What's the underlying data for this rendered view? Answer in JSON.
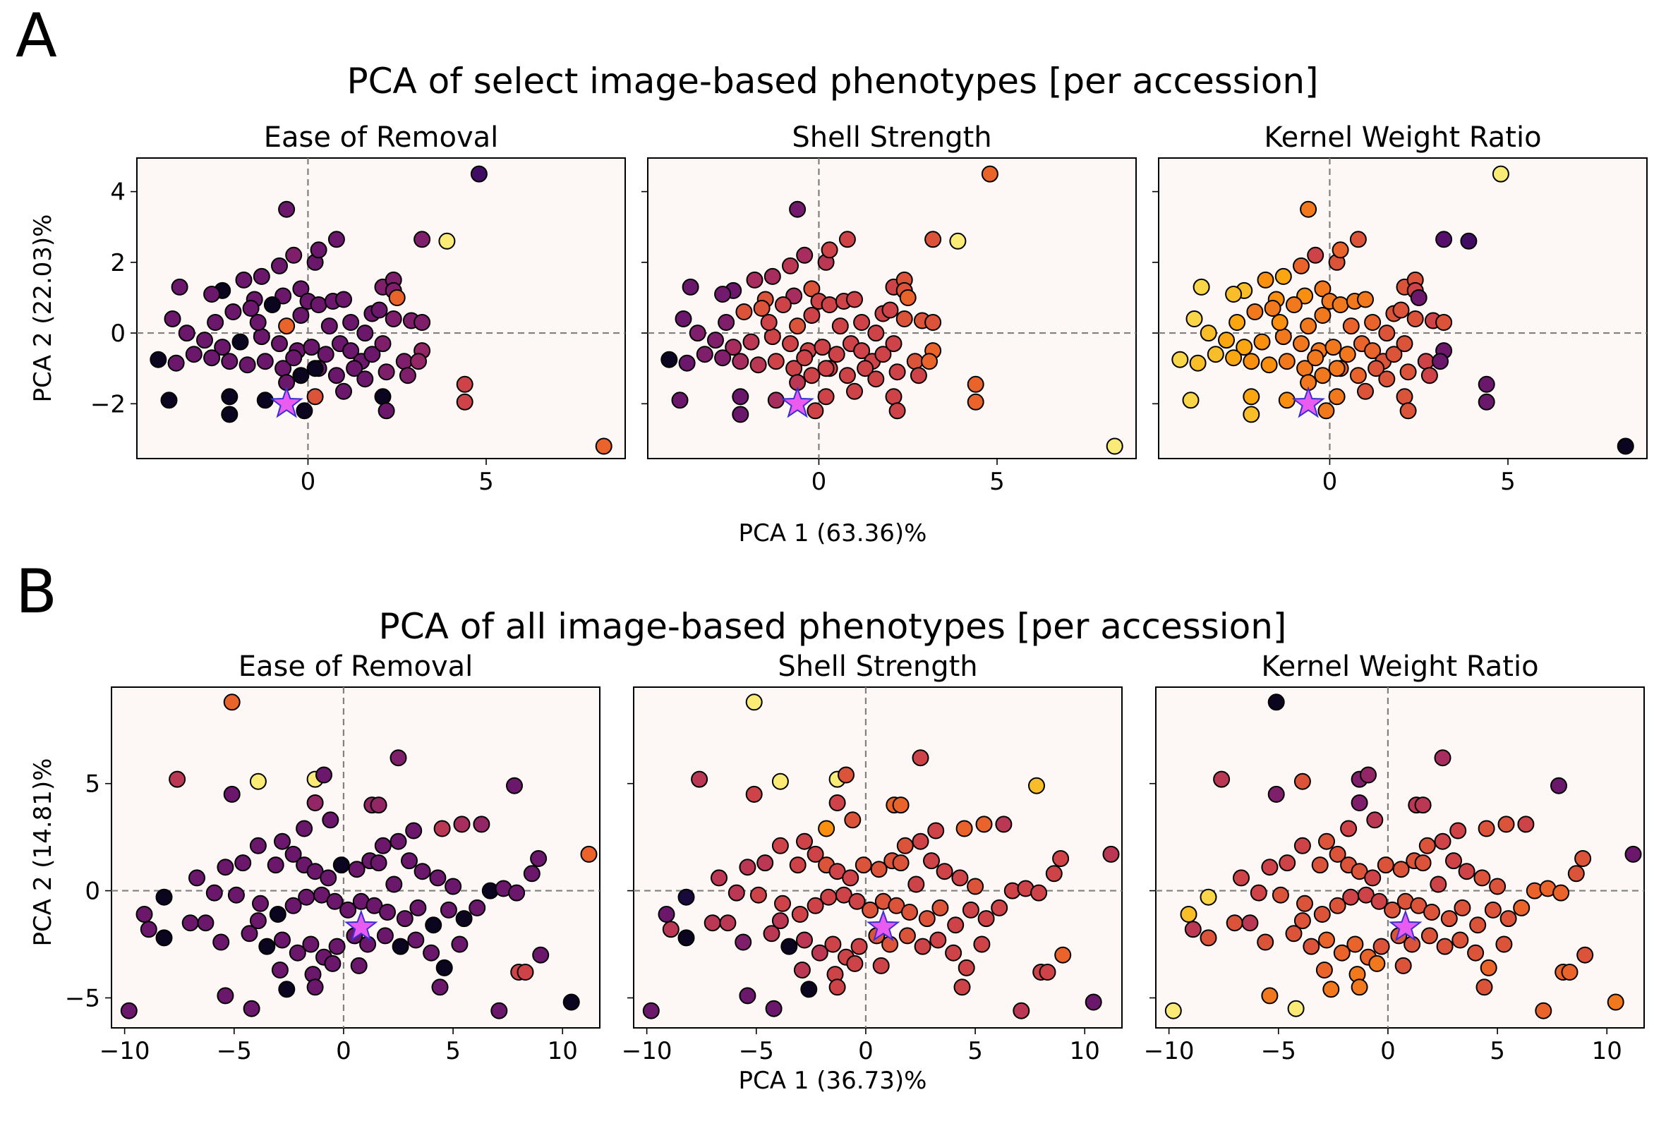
{
  "colormap": [
    "#000004",
    "#1b0c41",
    "#4a0c6b",
    "#781c6d",
    "#a52c60",
    "#cf4446",
    "#ed6925",
    "#fb9b06",
    "#f7d13d",
    "#fcffa4"
  ],
  "star_color": "#ea5cf0",
  "panel_labels": [
    "A",
    "B"
  ],
  "chart_data": [
    {
      "type": "scatter",
      "title": "PCA of select image-based phenotypes [per accession]",
      "xlabel": "PCA 1 (63.36)%",
      "ylabel": "PCA 2 (22.03)%",
      "xlim": [
        -4.8,
        8.9
      ],
      "ylim": [
        -3.55,
        4.95
      ],
      "xticks": [
        0,
        5
      ],
      "yticks": [
        -2,
        0,
        2,
        4
      ],
      "grid": false,
      "subplots": [
        "Ease of Removal",
        "Shell Strength",
        "Kernel Weight Ratio"
      ],
      "star": [
        -0.6,
        -2.0
      ],
      "points": [
        [
          4.8,
          4.5,
          0.2,
          0.65,
          0.95
        ],
        [
          -0.6,
          3.5,
          0.3,
          0.32,
          0.7
        ],
        [
          0.8,
          2.65,
          0.3,
          0.55,
          0.6
        ],
        [
          3.9,
          2.6,
          0.95,
          0.95,
          0.2
        ],
        [
          3.2,
          2.65,
          0.35,
          0.6,
          0.25
        ],
        [
          -0.4,
          2.2,
          0.35,
          0.45,
          0.55
        ],
        [
          0.2,
          2.0,
          0.3,
          0.5,
          0.6
        ],
        [
          0.3,
          2.35,
          0.3,
          0.55,
          0.65
        ],
        [
          -0.8,
          1.9,
          0.3,
          0.5,
          0.65
        ],
        [
          -1.3,
          1.6,
          0.3,
          0.45,
          0.8
        ],
        [
          -1.8,
          1.5,
          0.3,
          0.45,
          0.75
        ],
        [
          -3.6,
          1.3,
          0.3,
          0.3,
          0.9
        ],
        [
          -2.4,
          1.2,
          0.05,
          0.3,
          0.85
        ],
        [
          -2.7,
          1.1,
          0.3,
          0.32,
          0.85
        ],
        [
          -1.5,
          0.95,
          0.3,
          0.6,
          0.75
        ],
        [
          -0.7,
          1.05,
          0.3,
          0.45,
          0.75
        ],
        [
          -1.0,
          0.8,
          0.05,
          0.55,
          0.7
        ],
        [
          -2.1,
          0.6,
          0.3,
          0.6,
          0.7
        ],
        [
          -1.6,
          0.7,
          0.3,
          0.6,
          0.7
        ],
        [
          -0.2,
          1.25,
          0.3,
          0.6,
          0.7
        ],
        [
          0.0,
          0.9,
          0.3,
          0.55,
          0.7
        ],
        [
          0.3,
          0.8,
          0.3,
          0.55,
          0.7
        ],
        [
          0.7,
          0.9,
          0.3,
          0.55,
          0.7
        ],
        [
          1.0,
          0.95,
          0.3,
          0.55,
          0.7
        ],
        [
          2.1,
          1.3,
          0.35,
          0.55,
          0.6
        ],
        [
          2.4,
          1.5,
          0.35,
          0.6,
          0.6
        ],
        [
          1.8,
          0.55,
          0.3,
          0.55,
          0.6
        ],
        [
          2.9,
          0.35,
          0.35,
          0.6,
          0.55
        ],
        [
          3.2,
          0.3,
          0.35,
          0.6,
          0.6
        ],
        [
          2.4,
          0.4,
          0.35,
          0.6,
          0.6
        ],
        [
          -0.6,
          0.2,
          0.65,
          0.6,
          0.7
        ],
        [
          -3.8,
          0.4,
          0.3,
          0.3,
          0.9
        ],
        [
          -3.4,
          0.0,
          0.3,
          0.35,
          0.85
        ],
        [
          -2.9,
          -0.2,
          0.3,
          0.35,
          0.8
        ],
        [
          -2.4,
          -0.4,
          0.3,
          0.45,
          0.8
        ],
        [
          -1.9,
          -0.25,
          0.05,
          0.5,
          0.75
        ],
        [
          -1.3,
          -0.1,
          0.3,
          0.55,
          0.7
        ],
        [
          -0.8,
          -0.3,
          0.3,
          0.55,
          0.7
        ],
        [
          -0.3,
          -0.5,
          0.3,
          0.55,
          0.7
        ],
        [
          0.1,
          -0.4,
          0.3,
          0.55,
          0.7
        ],
        [
          0.5,
          -0.6,
          0.3,
          0.55,
          0.7
        ],
        [
          0.9,
          -0.3,
          0.3,
          0.55,
          0.65
        ],
        [
          1.2,
          -0.5,
          0.3,
          0.55,
          0.65
        ],
        [
          1.5,
          -0.8,
          0.3,
          0.55,
          0.6
        ],
        [
          1.8,
          -0.6,
          0.3,
          0.55,
          0.6
        ],
        [
          2.1,
          -0.3,
          0.35,
          0.55,
          0.6
        ],
        [
          2.7,
          -0.8,
          0.35,
          0.6,
          0.55
        ],
        [
          3.2,
          -0.5,
          0.4,
          0.65,
          0.3
        ],
        [
          -4.2,
          -0.75,
          0.05,
          0.05,
          0.9
        ],
        [
          -3.7,
          -0.85,
          0.3,
          0.3,
          0.85
        ],
        [
          -3.2,
          -0.6,
          0.3,
          0.35,
          0.85
        ],
        [
          -2.7,
          -0.7,
          0.3,
          0.35,
          0.8
        ],
        [
          -2.2,
          -0.8,
          0.3,
          0.45,
          0.75
        ],
        [
          -1.7,
          -0.9,
          0.3,
          0.5,
          0.75
        ],
        [
          -1.2,
          -0.8,
          0.3,
          0.55,
          0.7
        ],
        [
          -0.7,
          -1.0,
          0.3,
          0.55,
          0.7
        ],
        [
          -0.2,
          -1.2,
          0.05,
          0.55,
          0.7
        ],
        [
          0.3,
          -1.0,
          0.3,
          0.55,
          0.65
        ],
        [
          0.8,
          -1.2,
          0.3,
          0.55,
          0.65
        ],
        [
          1.3,
          -1.0,
          0.3,
          0.55,
          0.6
        ],
        [
          1.6,
          -1.3,
          0.3,
          0.55,
          0.6
        ],
        [
          2.2,
          -1.1,
          0.35,
          0.55,
          0.6
        ],
        [
          2.8,
          -1.2,
          0.35,
          0.55,
          0.55
        ],
        [
          3.1,
          -0.8,
          0.4,
          0.65,
          0.3
        ],
        [
          -3.9,
          -1.9,
          0.05,
          0.3,
          0.9
        ],
        [
          -2.2,
          -1.8,
          0.05,
          0.3,
          0.8
        ],
        [
          -2.2,
          -2.3,
          0.05,
          0.3,
          0.85
        ],
        [
          -1.2,
          -1.9,
          0.05,
          0.45,
          0.75
        ],
        [
          -0.6,
          -1.4,
          0.3,
          0.5,
          0.7
        ],
        [
          0.2,
          -1.8,
          0.6,
          0.55,
          0.7
        ],
        [
          -0.1,
          -2.2,
          0.05,
          0.55,
          0.7
        ],
        [
          0.2,
          -1.0,
          0.05,
          0.55,
          0.7
        ],
        [
          1.0,
          -1.65,
          0.3,
          0.55,
          0.6
        ],
        [
          2.1,
          -1.8,
          0.05,
          0.55,
          0.6
        ],
        [
          2.2,
          -2.2,
          0.3,
          0.55,
          0.6
        ],
        [
          4.4,
          -1.45,
          0.55,
          0.65,
          0.3
        ],
        [
          4.4,
          -1.95,
          0.55,
          0.65,
          0.3
        ],
        [
          8.3,
          -3.2,
          0.65,
          0.95,
          0.05
        ],
        [
          2.4,
          1.2,
          0.35,
          0.6,
          0.55
        ],
        [
          2.0,
          0.65,
          0.3,
          0.55,
          0.6
        ],
        [
          1.2,
          0.3,
          0.3,
          0.55,
          0.65
        ],
        [
          0.6,
          0.2,
          0.3,
          0.55,
          0.65
        ],
        [
          -0.2,
          0.5,
          0.3,
          0.55,
          0.7
        ],
        [
          -1.4,
          0.3,
          0.3,
          0.55,
          0.75
        ],
        [
          -2.6,
          0.3,
          0.3,
          0.35,
          0.8
        ],
        [
          2.5,
          1.0,
          0.65,
          0.65,
          0.3
        ],
        [
          1.6,
          0.0,
          0.3,
          0.55,
          0.6
        ],
        [
          -0.4,
          -0.7,
          0.3,
          0.55,
          0.7
        ]
      ]
    },
    {
      "type": "scatter",
      "title": "PCA of all image-based phenotypes [per accession]",
      "xlabel": "PCA 1 (36.73)%",
      "ylabel": "PCA 2 (14.81)%",
      "xlim": [
        -10.6,
        11.7
      ],
      "ylim": [
        -6.4,
        9.5
      ],
      "xticks": [
        -10,
        -5,
        0,
        5,
        10
      ],
      "yticks": [
        -5,
        0,
        5
      ],
      "grid": false,
      "subplots": [
        "Ease of Removal",
        "Shell Strength",
        "Kernel Weight Ratio"
      ],
      "star": [
        0.8,
        -1.7
      ],
      "points": [
        [
          -5.1,
          8.8,
          0.65,
          0.95,
          0.05
        ],
        [
          -3.9,
          5.1,
          0.95,
          0.95,
          0.6
        ],
        [
          -1.3,
          5.2,
          0.95,
          0.95,
          0.35
        ],
        [
          -0.9,
          5.4,
          0.3,
          0.6,
          0.4
        ],
        [
          -7.6,
          5.2,
          0.5,
          0.5,
          0.5
        ],
        [
          -5.1,
          4.5,
          0.3,
          0.55,
          0.35
        ],
        [
          -1.3,
          4.1,
          0.4,
          0.55,
          0.35
        ],
        [
          1.3,
          4.0,
          0.4,
          0.65,
          0.5
        ],
        [
          1.6,
          4.0,
          0.4,
          0.65,
          0.5
        ],
        [
          2.5,
          6.2,
          0.35,
          0.55,
          0.45
        ],
        [
          4.5,
          2.9,
          0.5,
          0.65,
          0.6
        ],
        [
          5.4,
          3.1,
          0.45,
          0.65,
          0.6
        ],
        [
          6.3,
          3.1,
          0.4,
          0.5,
          0.55
        ],
        [
          7.8,
          4.9,
          0.3,
          0.85,
          0.3
        ],
        [
          11.2,
          1.7,
          0.65,
          0.5,
          0.3
        ],
        [
          -8.2,
          -0.3,
          0.05,
          0.1,
          0.9
        ],
        [
          -9.1,
          -1.1,
          0.3,
          0.3,
          0.85
        ],
        [
          -9.8,
          -5.6,
          0.3,
          0.3,
          0.95
        ],
        [
          -8.9,
          -1.8,
          0.3,
          0.5,
          0.5
        ],
        [
          -8.2,
          -2.2,
          0.05,
          0.05,
          0.6
        ],
        [
          -7.0,
          -1.5,
          0.3,
          0.5,
          0.6
        ],
        [
          -6.3,
          -1.5,
          0.3,
          0.5,
          0.5
        ],
        [
          -5.6,
          -2.4,
          0.3,
          0.35,
          0.6
        ],
        [
          -5.4,
          -4.9,
          0.3,
          0.3,
          0.7
        ],
        [
          -4.2,
          -5.5,
          0.3,
          0.3,
          0.95
        ],
        [
          -6.7,
          0.6,
          0.3,
          0.5,
          0.55
        ],
        [
          -5.9,
          -0.1,
          0.3,
          0.5,
          0.55
        ],
        [
          -5.4,
          1.1,
          0.3,
          0.5,
          0.55
        ],
        [
          -4.6,
          1.3,
          0.3,
          0.5,
          0.55
        ],
        [
          -3.9,
          2.1,
          0.3,
          0.55,
          0.55
        ],
        [
          -3.1,
          1.2,
          0.3,
          0.55,
          0.6
        ],
        [
          -2.8,
          2.3,
          0.3,
          0.55,
          0.6
        ],
        [
          -2.3,
          1.7,
          0.3,
          0.55,
          0.6
        ],
        [
          -1.8,
          1.2,
          0.3,
          0.6,
          0.6
        ],
        [
          -1.3,
          0.9,
          0.3,
          0.55,
          0.6
        ],
        [
          -0.7,
          0.6,
          0.3,
          0.55,
          0.55
        ],
        [
          -0.1,
          1.2,
          0.05,
          0.6,
          0.6
        ],
        [
          0.6,
          1.0,
          0.3,
          0.6,
          0.6
        ],
        [
          1.2,
          1.4,
          0.3,
          0.6,
          0.6
        ],
        [
          1.8,
          2.1,
          0.3,
          0.6,
          0.6
        ],
        [
          2.5,
          2.3,
          0.3,
          0.55,
          0.55
        ],
        [
          3.0,
          1.4,
          0.3,
          0.55,
          0.55
        ],
        [
          3.6,
          0.9,
          0.3,
          0.55,
          0.55
        ],
        [
          4.3,
          0.6,
          0.3,
          0.55,
          0.6
        ],
        [
          5.0,
          0.2,
          0.3,
          0.6,
          0.6
        ],
        [
          -4.9,
          -0.2,
          0.3,
          0.55,
          0.6
        ],
        [
          -3.8,
          -0.6,
          0.3,
          0.55,
          0.6
        ],
        [
          -3.0,
          -1.1,
          0.05,
          0.55,
          0.6
        ],
        [
          -2.3,
          -0.7,
          0.3,
          0.55,
          0.6
        ],
        [
          -1.7,
          -0.3,
          0.3,
          0.55,
          0.55
        ],
        [
          -1.0,
          -0.2,
          0.3,
          0.55,
          0.55
        ],
        [
          -0.4,
          -0.5,
          0.3,
          0.55,
          0.55
        ],
        [
          0.2,
          -0.9,
          0.3,
          0.6,
          0.6
        ],
        [
          0.8,
          -0.5,
          0.3,
          0.6,
          0.6
        ],
        [
          1.4,
          -0.7,
          0.3,
          0.6,
          0.6
        ],
        [
          2.0,
          -1.0,
          0.3,
          0.6,
          0.6
        ],
        [
          2.8,
          -1.3,
          0.3,
          0.6,
          0.6
        ],
        [
          3.4,
          -0.8,
          0.3,
          0.6,
          0.6
        ],
        [
          4.1,
          -1.6,
          0.05,
          0.55,
          0.6
        ],
        [
          4.8,
          -0.9,
          0.3,
          0.55,
          0.6
        ],
        [
          5.5,
          -1.3,
          0.05,
          0.55,
          0.6
        ],
        [
          6.1,
          -0.8,
          0.3,
          0.55,
          0.65
        ],
        [
          6.7,
          0.0,
          0.05,
          0.55,
          0.65
        ],
        [
          7.3,
          0.1,
          0.3,
          0.55,
          0.65
        ],
        [
          7.9,
          -0.1,
          0.3,
          0.55,
          0.65
        ],
        [
          8.6,
          0.8,
          0.3,
          0.55,
          0.6
        ],
        [
          8.9,
          1.5,
          0.3,
          0.55,
          0.6
        ],
        [
          -4.3,
          -2.0,
          0.3,
          0.5,
          0.6
        ],
        [
          -3.5,
          -2.6,
          0.05,
          0.05,
          0.6
        ],
        [
          -2.8,
          -2.3,
          0.3,
          0.5,
          0.65
        ],
        [
          -2.1,
          -2.9,
          0.3,
          0.5,
          0.65
        ],
        [
          -1.5,
          -2.5,
          0.3,
          0.55,
          0.65
        ],
        [
          -0.9,
          -3.1,
          0.3,
          0.55,
          0.65
        ],
        [
          -0.3,
          -2.6,
          0.3,
          0.55,
          0.6
        ],
        [
          0.5,
          -2.1,
          0.3,
          0.6,
          0.6
        ],
        [
          1.1,
          -2.5,
          0.3,
          0.6,
          0.6
        ],
        [
          1.9,
          -2.1,
          0.3,
          0.6,
          0.6
        ],
        [
          2.6,
          -2.6,
          0.05,
          0.55,
          0.6
        ],
        [
          3.3,
          -2.3,
          0.3,
          0.55,
          0.6
        ],
        [
          4.0,
          -2.9,
          0.3,
          0.55,
          0.6
        ],
        [
          4.6,
          -3.6,
          0.05,
          0.55,
          0.65
        ],
        [
          5.3,
          -2.5,
          0.3,
          0.55,
          0.6
        ],
        [
          -2.6,
          -4.6,
          0.05,
          0.05,
          0.7
        ],
        [
          -2.9,
          -3.7,
          0.3,
          0.5,
          0.65
        ],
        [
          -1.4,
          -3.9,
          0.3,
          0.55,
          0.7
        ],
        [
          -1.3,
          -4.5,
          0.3,
          0.55,
          0.7
        ],
        [
          0.7,
          -3.5,
          0.3,
          0.55,
          0.6
        ],
        [
          4.4,
          -4.5,
          0.3,
          0.55,
          0.6
        ],
        [
          7.1,
          -5.6,
          0.3,
          0.5,
          0.65
        ],
        [
          8.0,
          -3.8,
          0.55,
          0.55,
          0.65
        ],
        [
          8.3,
          -3.8,
          0.55,
          0.55,
          0.65
        ],
        [
          9.0,
          -3.0,
          0.3,
          0.65,
          0.6
        ],
        [
          10.4,
          -5.2,
          0.05,
          0.3,
          0.7
        ],
        [
          3.2,
          2.8,
          0.3,
          0.55,
          0.55
        ],
        [
          -0.6,
          3.3,
          0.3,
          0.6,
          0.5
        ],
        [
          -1.8,
          2.9,
          0.3,
          0.75,
          0.55
        ],
        [
          -3.9,
          -1.4,
          0.3,
          0.5,
          0.6
        ],
        [
          1.6,
          1.3,
          0.3,
          0.6,
          0.6
        ],
        [
          2.3,
          0.3,
          0.3,
          0.55,
          0.55
        ],
        [
          -0.5,
          -3.4,
          0.3,
          0.55,
          0.7
        ]
      ]
    }
  ]
}
